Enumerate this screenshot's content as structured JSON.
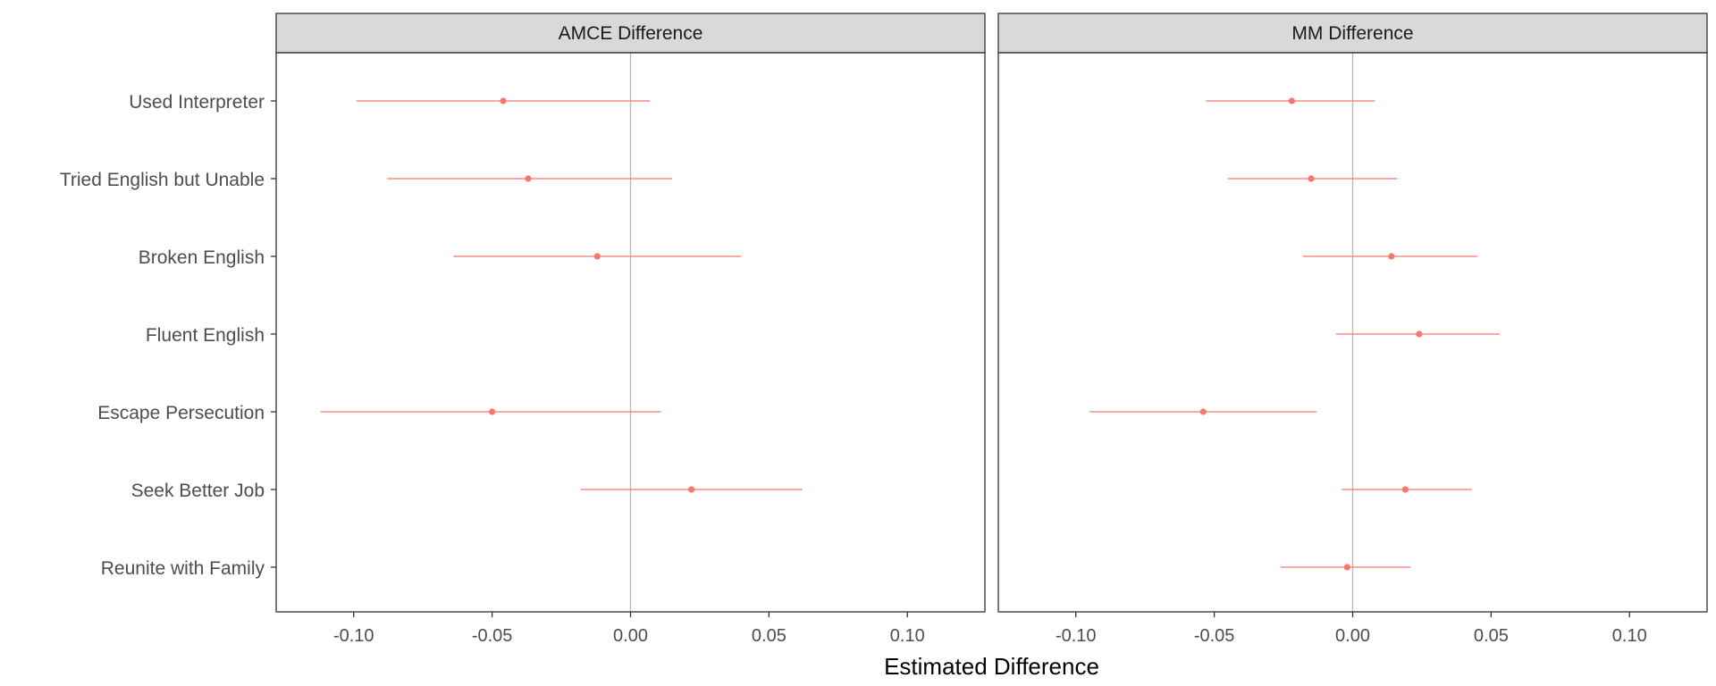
{
  "chart_data": {
    "type": "scatter",
    "xlabel": "Estimated Difference",
    "xlim": [
      -0.128,
      0.128
    ],
    "xticks": [
      -0.1,
      -0.05,
      0.0,
      0.05,
      0.1
    ],
    "xtick_labels": [
      "-0.10",
      "-0.05",
      "0.00",
      "0.05",
      "0.10"
    ],
    "vline_at": 0,
    "grid": false,
    "categories": [
      "Used Interpreter",
      "Tried English but Unable",
      "Broken English",
      "Fluent English",
      "Escape Persecution",
      "Seek Better Job",
      "Reunite with Family"
    ],
    "panels": [
      {
        "name": "AMCE Difference",
        "estimates": [
          -0.046,
          -0.037,
          -0.012,
          null,
          -0.05,
          0.022,
          null
        ],
        "lower": [
          -0.099,
          -0.088,
          -0.064,
          null,
          -0.112,
          -0.018,
          null
        ],
        "upper": [
          0.007,
          0.015,
          0.04,
          null,
          0.011,
          0.062,
          null
        ]
      },
      {
        "name": "MM Difference",
        "estimates": [
          -0.022,
          -0.015,
          0.014,
          0.024,
          -0.054,
          0.019,
          -0.002
        ],
        "lower": [
          -0.053,
          -0.045,
          -0.018,
          -0.006,
          -0.095,
          -0.004,
          -0.026
        ],
        "upper": [
          0.008,
          0.016,
          0.045,
          0.053,
          -0.013,
          0.043,
          0.021
        ]
      }
    ],
    "colors": {
      "point": "#f8766d",
      "strip": "#d9d9d9",
      "vline": "#b3b3b3",
      "frame": "#333333"
    }
  }
}
